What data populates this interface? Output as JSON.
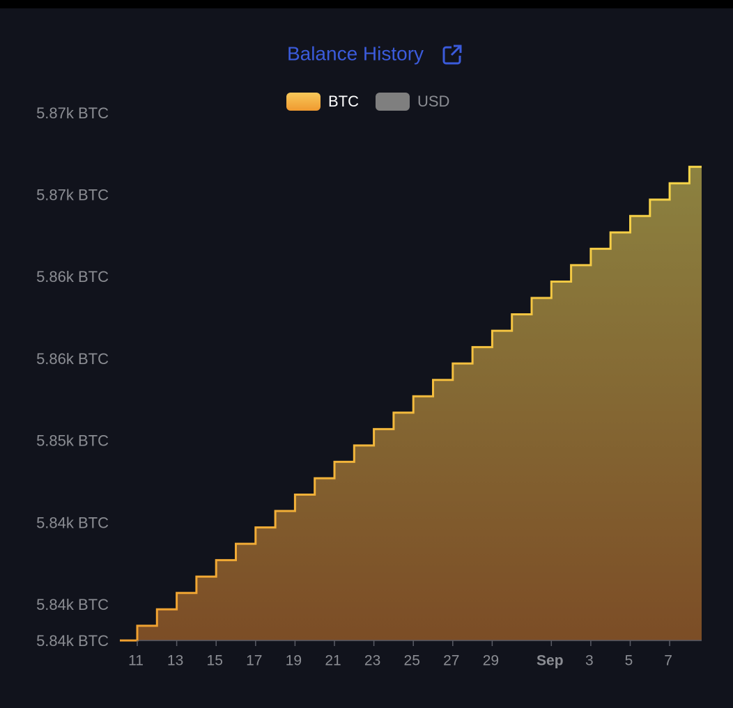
{
  "chart_data": {
    "type": "step-area",
    "title": "Balance History",
    "categories": [
      null,
      "11",
      null,
      "13",
      null,
      "15",
      null,
      "17",
      null,
      "19",
      null,
      "21",
      null,
      "23",
      null,
      "25",
      null,
      "27",
      null,
      "29",
      null,
      null,
      "Sep",
      null,
      "3",
      null,
      "5",
      null,
      "7",
      null
    ],
    "series": [
      {
        "name": "BTC",
        "color": "#f5b942",
        "values": [
          5837.8,
          5838.7,
          5839.7,
          5840.7,
          5841.7,
          5842.7,
          5843.7,
          5844.7,
          5845.7,
          5846.7,
          5847.7,
          5848.7,
          5849.7,
          5850.7,
          5851.7,
          5852.7,
          5853.7,
          5854.7,
          5855.7,
          5856.7,
          5857.7,
          5858.7,
          5859.7,
          5860.7,
          5861.7,
          5862.7,
          5863.7,
          5864.7,
          5865.7,
          5866.7
        ]
      }
    ],
    "hidden_series": [
      {
        "name": "USD",
        "color": "#7f7f7f"
      }
    ],
    "ylim": [
      5837.8,
      5870
    ],
    "yticks": [
      {
        "value": 5837.8,
        "label": "5.84k BTC"
      },
      {
        "value": 5840,
        "label": "5.84k BTC"
      },
      {
        "value": 5845,
        "label": "5.84k BTC"
      },
      {
        "value": 5850,
        "label": "5.85k BTC"
      },
      {
        "value": 5855,
        "label": "5.86k BTC"
      },
      {
        "value": 5860,
        "label": "5.86k BTC"
      },
      {
        "value": 5865,
        "label": "5.87k BTC"
      },
      {
        "value": 5870,
        "label": "5.87k BTC"
      }
    ]
  }
}
